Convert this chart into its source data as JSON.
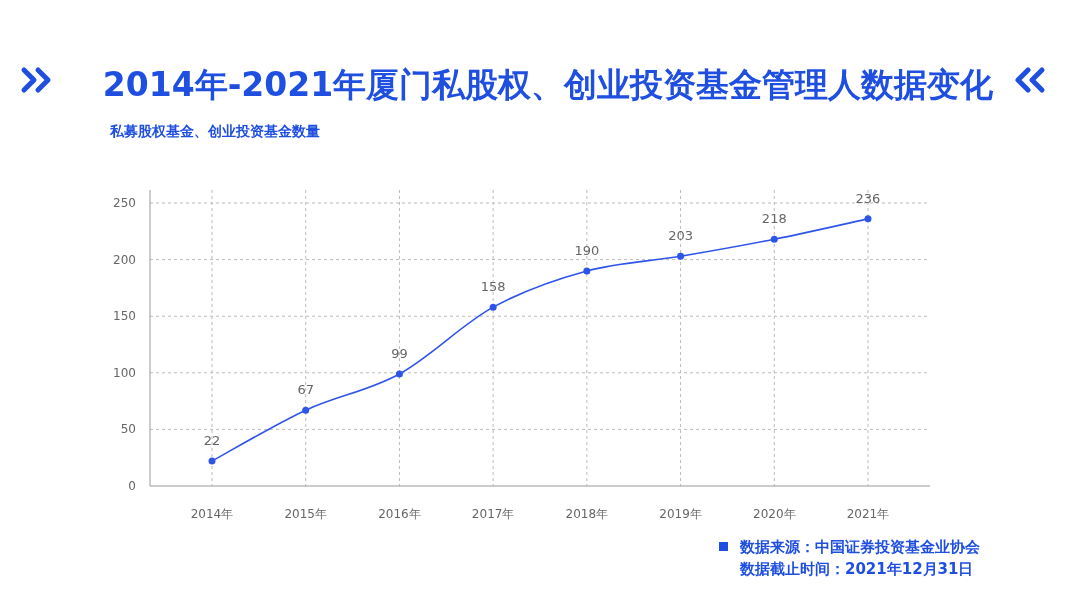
{
  "chart_data": {
    "type": "line",
    "title": "2014年-2021年厦门私股权、创业投资基金管理人数据变化",
    "subtitle": "私募股权基金、创业投资基金数量",
    "categories": [
      "2014年",
      "2015年",
      "2016年",
      "2017年",
      "2018年",
      "2019年",
      "2020年",
      "2021年"
    ],
    "values": [
      22,
      67,
      99,
      158,
      190,
      203,
      218,
      236
    ],
    "color": "#2f55e8",
    "ylim": [
      0,
      250
    ],
    "yticks": [
      0,
      50,
      100,
      150,
      200,
      250
    ],
    "grid": true,
    "data_labels": true,
    "marker": "circle",
    "annotations": [
      "数据来源：中国证券投资基金业协会",
      "数据截止时间：2021年12月31日"
    ]
  }
}
